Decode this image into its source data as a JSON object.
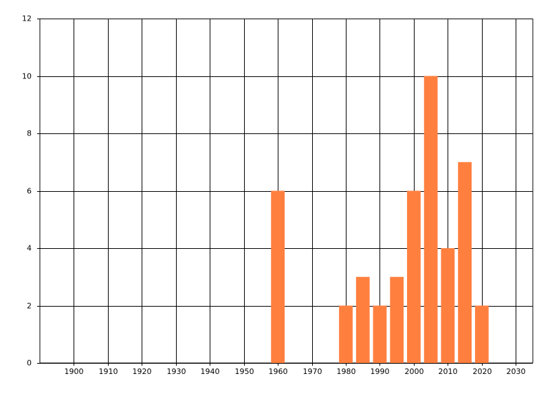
{
  "chart_data": {
    "type": "bar",
    "x": [
      1960,
      1980,
      1985,
      1990,
      1995,
      2000,
      2005,
      2010,
      2015,
      2020
    ],
    "values": [
      6,
      2,
      3,
      2,
      3,
      6,
      10,
      4,
      7,
      2
    ],
    "color": "#ff7f3f",
    "xlim": [
      1890,
      2035
    ],
    "xticks": [
      1900,
      1910,
      1920,
      1930,
      1940,
      1950,
      1960,
      1970,
      1980,
      1990,
      2000,
      2010,
      2020,
      2030
    ],
    "ylim": [
      0,
      12
    ],
    "yticks": [
      0,
      2,
      4,
      6,
      8,
      10,
      12
    ],
    "grid": true
  }
}
